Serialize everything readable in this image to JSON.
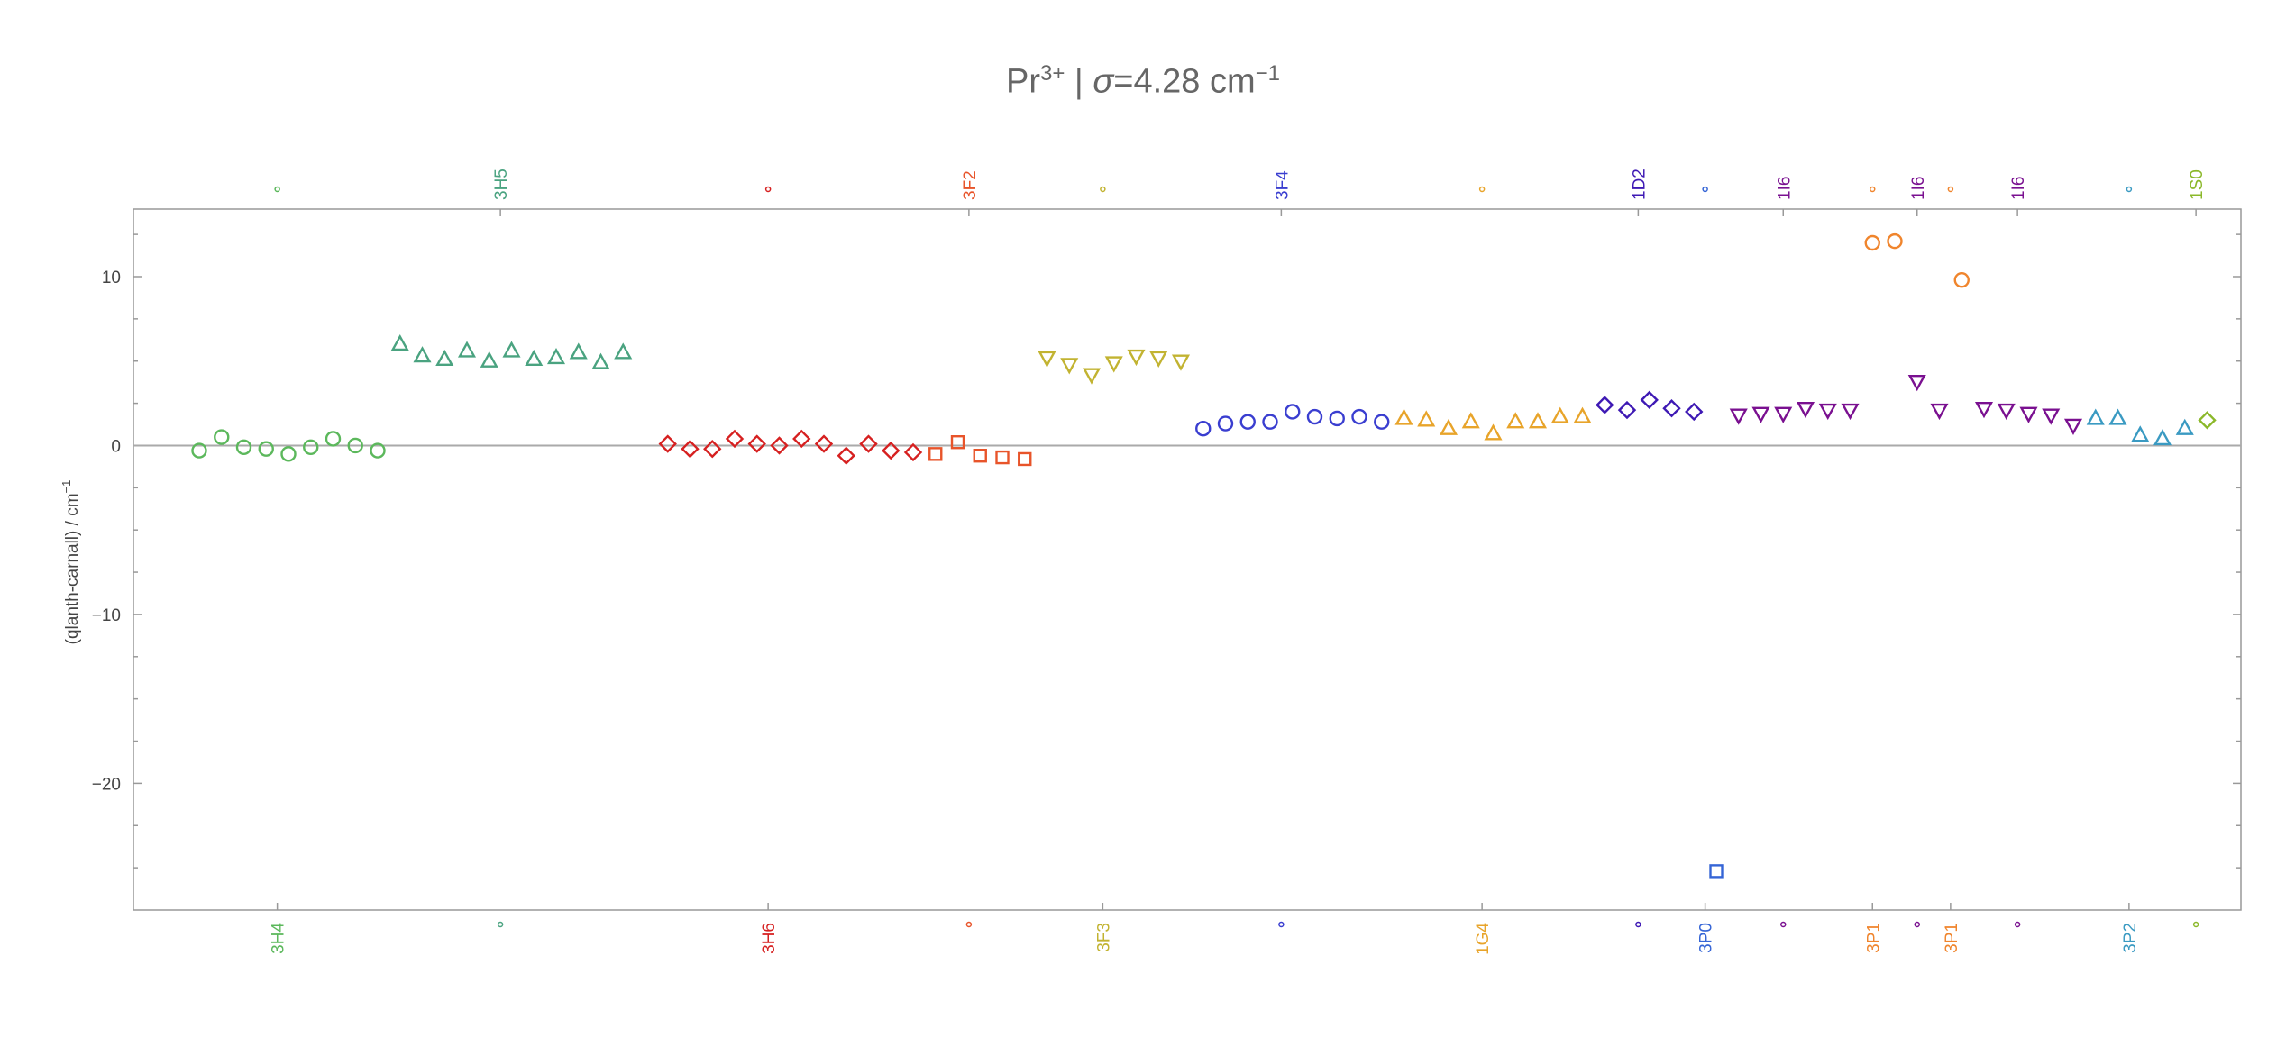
{
  "chart_data": {
    "type": "scatter",
    "title": {
      "ion": "Pr",
      "charge": "3+",
      "sigma_symbol": "σ",
      "sigma_text": "=4.28 cm",
      "unit_exp": "−1"
    },
    "ylabel": {
      "text": "(qlanth-carnall) / cm",
      "unit_exp": "−1"
    },
    "xlim": [
      0.0,
      92.5
    ],
    "ylim": [
      -27.5,
      14.0
    ],
    "y_ticks": [
      {
        "value": 10,
        "label": "10"
      },
      {
        "value": 0,
        "label": "0"
      },
      {
        "value": -10,
        "label": "−10"
      },
      {
        "value": -20,
        "label": "−20"
      }
    ],
    "zero_line": true,
    "grid": false,
    "groups": [
      {
        "label": "3H4",
        "side": "bottom",
        "color": "#5cb85c",
        "x": 6.5
      },
      {
        "label": "3H5",
        "side": "top",
        "color": "#4aa380",
        "x": 16.5
      },
      {
        "label": "3H6",
        "side": "bottom",
        "color": "#d62020",
        "x": 28.5
      },
      {
        "label": "3F2",
        "side": "top",
        "color": "#e8542a",
        "x": 37.5
      },
      {
        "label": "3F3",
        "side": "bottom",
        "color": "#c2b331",
        "x": 43.5
      },
      {
        "label": "3F4",
        "side": "top",
        "color": "#3a3ed0",
        "x": 51.5
      },
      {
        "label": "1G4",
        "side": "bottom",
        "color": "#e8a42a",
        "x": 60.5
      },
      {
        "label": "1D2",
        "side": "top",
        "color": "#3e19b4",
        "x": 67.5
      },
      {
        "label": "3P0",
        "side": "bottom",
        "color": "#3565d6",
        "x": 70.5
      },
      {
        "label": "1I6",
        "side": "top",
        "color": "#7a1090",
        "x": 74
      },
      {
        "label": "3P1",
        "side": "bottom",
        "color": "#f0852d",
        "x": 78
      },
      {
        "label": "1I6",
        "side": "top",
        "color": "#7a1090",
        "x": 80
      },
      {
        "label": "3P1",
        "side": "bottom",
        "color": "#f0852d",
        "x": 81.5
      },
      {
        "label": "1I6",
        "side": "top",
        "color": "#7a1090",
        "x": 84.5
      },
      {
        "label": "3P2",
        "side": "bottom",
        "color": "#3a9ac2",
        "x": 89.5
      },
      {
        "label": "1S0",
        "side": "top",
        "color": "#8bb82a",
        "x": 92.5
      }
    ],
    "dot_markers": {
      "top": [
        6.5,
        28.5,
        43.5,
        60.5,
        70.5,
        78,
        81.5,
        89.5
      ],
      "bottom": [
        16.5,
        37.5,
        51.5,
        67.5,
        74,
        80,
        84.5,
        92.5
      ]
    },
    "series": [
      {
        "label": "3H4",
        "marker": "circle",
        "color": "#5cb85c",
        "x": [
          3,
          4,
          5,
          6,
          7,
          8,
          9,
          10,
          11
        ],
        "y": [
          -0.3,
          0.5,
          -0.1,
          -0.2,
          -0.5,
          -0.1,
          0.4,
          0.0,
          -0.3
        ]
      },
      {
        "label": "3H5",
        "marker": "triangle-up",
        "color": "#4aa380",
        "x": [
          12,
          13,
          14,
          15,
          16,
          17,
          18,
          19,
          20,
          21,
          22
        ],
        "y": [
          6.0,
          5.3,
          5.1,
          5.6,
          5.0,
          5.6,
          5.1,
          5.2,
          5.5,
          4.9,
          5.5
        ]
      },
      {
        "label": "3H6",
        "marker": "diamond",
        "color": "#d62020",
        "x": [
          24,
          25,
          26,
          27,
          28,
          29,
          30,
          31,
          32,
          33,
          34,
          35
        ],
        "y": [
          0.1,
          -0.2,
          -0.2,
          0.4,
          0.1,
          0.0,
          0.4,
          0.1,
          -0.6,
          0.1,
          -0.3,
          -0.4
        ]
      },
      {
        "label": "3F2",
        "marker": "square",
        "color": "#e8542a",
        "x": [
          36,
          37,
          38,
          39,
          40
        ],
        "y": [
          -0.5,
          0.2,
          -0.6,
          -0.7,
          -0.8
        ]
      },
      {
        "label": "3F3",
        "marker": "triangle-down",
        "color": "#c2b331",
        "x": [
          41,
          42,
          43,
          44,
          45,
          46,
          47
        ],
        "y": [
          5.2,
          4.8,
          4.2,
          4.9,
          5.3,
          5.2,
          5.0
        ]
      },
      {
        "label": "3F4",
        "marker": "circle",
        "color": "#3a3ed0",
        "x": [
          48,
          49,
          50,
          51,
          52,
          53,
          54,
          55,
          56
        ],
        "y": [
          1.0,
          1.3,
          1.4,
          1.4,
          2.0,
          1.7,
          1.6,
          1.7,
          1.4
        ]
      },
      {
        "label": "1G4",
        "marker": "triangle-up",
        "color": "#e8a42a",
        "x": [
          57,
          58,
          59,
          60,
          61,
          62,
          63,
          64,
          65
        ],
        "y": [
          1.6,
          1.5,
          1.0,
          1.4,
          0.7,
          1.4,
          1.4,
          1.7,
          1.7
        ]
      },
      {
        "label": "1D2",
        "marker": "diamond",
        "color": "#3e19b4",
        "x": [
          66,
          67,
          68,
          69,
          70
        ],
        "y": [
          2.4,
          2.1,
          2.7,
          2.2,
          2.0
        ]
      },
      {
        "label": "3P0",
        "marker": "square",
        "color": "#3565d6",
        "x": [
          71
        ],
        "y": [
          -25.2
        ]
      },
      {
        "label": "1I6",
        "marker": "triangle-down",
        "color": "#7a1090",
        "x": [
          72,
          73,
          74,
          75,
          76,
          77
        ],
        "y": [
          1.8,
          1.9,
          1.9,
          2.2,
          2.1,
          2.1
        ]
      },
      {
        "label": "3P1",
        "marker": "circle",
        "color": "#f0852d",
        "x": [
          78,
          79
        ],
        "y": [
          12.0,
          12.1
        ]
      },
      {
        "label": "1I6",
        "marker": "triangle-down",
        "color": "#7a1090",
        "x": [
          80,
          81
        ],
        "y": [
          3.8,
          2.1
        ]
      },
      {
        "label": "3P1",
        "marker": "circle",
        "color": "#f0852d",
        "x": [
          82
        ],
        "y": [
          9.8
        ]
      },
      {
        "label": "1I6",
        "marker": "triangle-down",
        "color": "#7a1090",
        "x": [
          83,
          84,
          85,
          86,
          87
        ],
        "y": [
          2.2,
          2.1,
          1.9,
          1.8,
          1.2
        ]
      },
      {
        "label": "3P2",
        "marker": "triangle-up",
        "color": "#3a9ac2",
        "x": [
          88,
          89,
          90,
          91,
          92
        ],
        "y": [
          1.6,
          1.6,
          0.6,
          0.4,
          1.0
        ]
      },
      {
        "label": "1S0",
        "marker": "diamond",
        "color": "#8bb82a",
        "x": [
          93
        ],
        "y": [
          1.5
        ]
      }
    ]
  }
}
